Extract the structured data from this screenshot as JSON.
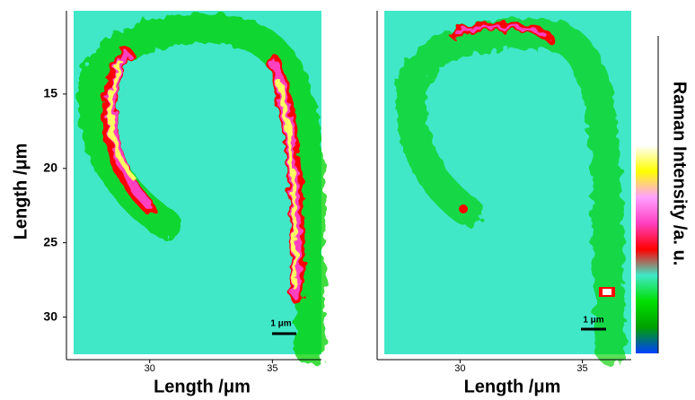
{
  "chart_data": [
    {
      "type": "heatmap",
      "x_label": "Length /μm",
      "y_label": "Length /μm",
      "xlim": [
        26.9,
        37.0
      ],
      "xticks": [
        30,
        35
      ],
      "ylim": [
        9.4,
        32.5
      ],
      "yticks": [
        15,
        20,
        25,
        30
      ],
      "y_inverted": true,
      "annotation": "1 μm"
    },
    {
      "type": "heatmap",
      "x_label": "Length /μm",
      "xlim": [
        26.9,
        37.0
      ],
      "xticks": [
        30,
        35
      ],
      "ylim": [
        9.4,
        32.5
      ],
      "y_inverted": true,
      "annotation": "1 μm",
      "colorbar_label": "Raman Intensity /a. u.",
      "colormap": [
        "#0040ff",
        "#00a000",
        "#00e000",
        "#40e8c8",
        "#ff0000",
        "#ff40c0",
        "#ffa0ff",
        "#ffff00",
        "#ffffff"
      ]
    }
  ]
}
